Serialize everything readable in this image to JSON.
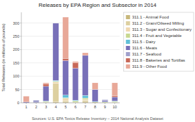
{
  "chart_data": {
    "type": "bar",
    "stacked": true,
    "title": "Releases by EPA Region and Subsector in 2014",
    "ylabel": "Total Releases (in millions of pounds)",
    "annotations": [
      "Sources: U.S. EPA Toxics Release Inventory – 2014 National Analysis Dataset"
    ],
    "categories": [
      "1",
      "2",
      "3",
      "4",
      "5",
      "6",
      "7",
      "8",
      "9",
      "10"
    ],
    "series": [
      {
        "name": "311.1 - Animal Food",
        "color": "#c8b87c",
        "values": [
          0,
          0,
          2,
          3,
          3,
          2,
          5,
          3,
          0,
          2
        ]
      },
      {
        "name": "311.2 - Grain/Oilseed Milling",
        "color": "#ddd0a0",
        "values": [
          0,
          0,
          0,
          70,
          5,
          0,
          5,
          0,
          0,
          0
        ]
      },
      {
        "name": "311.3 - Sugar and Confectionary",
        "color": "#f0d8b0",
        "values": [
          0,
          0,
          0,
          5,
          8,
          0,
          3,
          0,
          0,
          0
        ]
      },
      {
        "name": "311.4 - Fruit and Vegetable",
        "color": "#c8d890",
        "values": [
          0,
          0,
          3,
          3,
          3,
          5,
          5,
          0,
          3,
          3
        ]
      },
      {
        "name": "311.5 - Dairy",
        "color": "#60c0d8",
        "values": [
          0,
          0,
          2,
          3,
          10,
          3,
          10,
          2,
          1,
          2
        ]
      },
      {
        "name": "311.6 - Meats",
        "color": "#7870b8",
        "values": [
          3,
          0,
          55,
          215,
          130,
          120,
          150,
          45,
          5,
          15
        ]
      },
      {
        "name": "311.7 - Seafood",
        "color": "#a0a0cc",
        "values": [
          0,
          10,
          0,
          0,
          0,
          0,
          0,
          0,
          3,
          0
        ]
      },
      {
        "name": "311.8 - Bakeries and Tortillas",
        "color": "#c86858",
        "values": [
          2,
          0,
          8,
          0,
          8,
          20,
          0,
          0,
          0,
          5
        ]
      },
      {
        "name": "311.9 - Other Food",
        "color": "#e8a898",
        "values": [
          20,
          0,
          5,
          0,
          155,
          5,
          10,
          25,
          0,
          48
        ]
      }
    ],
    "ylim": [
      0,
      340
    ],
    "yticks": [
      0,
      50,
      100,
      150,
      200,
      250,
      300
    ],
    "grid": true,
    "legend": "right"
  }
}
